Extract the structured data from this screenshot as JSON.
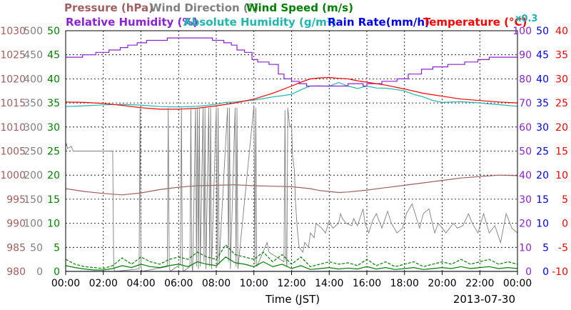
{
  "chart_data": {
    "type": "line",
    "date": "2013-07-30",
    "xlabel": "Time (JST)",
    "x_ticks": [
      "00:00",
      "02:00",
      "04:00",
      "06:00",
      "08:00",
      "10:00",
      "12:00",
      "14:00",
      "16:00",
      "18:00",
      "20:00",
      "22:00",
      "00:00"
    ],
    "xlim_hours": [
      0,
      24
    ],
    "grid": true,
    "legend": {
      "row1": [
        {
          "key": "pressure",
          "text": "Pressure (hPa)",
          "color": "#a0605f"
        },
        {
          "key": "winddir",
          "text": "Wind Direction (°)",
          "color": "#808080"
        },
        {
          "key": "windspeed",
          "text": "Wind Speed (m/s)",
          "color": "#008000"
        }
      ],
      "row2": [
        {
          "key": "rh",
          "text": "Relative Humidity (%)",
          "color": "#8c22d6"
        },
        {
          "key": "ah",
          "text": "Absolute Humidity (g/m³)",
          "color": "#1fb5b0"
        },
        {
          "key": "rain",
          "text": "Rain Rate(mm/h)",
          "color": "#0000ee"
        },
        {
          "key": "temp",
          "text": "Temperature (°C)",
          "color": "#ff0000"
        }
      ],
      "ah_scale_note": "x0.3"
    },
    "axes": {
      "pressure": {
        "side": "left",
        "ticks": [
          "1030",
          "1025",
          "1020",
          "1015",
          "1010",
          "1005",
          "1000",
          "995",
          "990",
          "985",
          "980"
        ],
        "range": [
          980,
          1030
        ],
        "color": "#a0605f"
      },
      "winddir": {
        "side": "left",
        "ticks": [
          "500",
          "450",
          "400",
          "350",
          "300",
          "250",
          "200",
          "150",
          "100",
          "50",
          "0"
        ],
        "range": [
          0,
          500
        ],
        "color": "#808080"
      },
      "windspeed": {
        "side": "left",
        "ticks": [
          "50",
          "45",
          "40",
          "35",
          "30",
          "25",
          "20",
          "15",
          "10",
          "5",
          "0"
        ],
        "range": [
          0,
          50
        ],
        "color": "#008000"
      },
      "rh": {
        "side": "right",
        "ticks": [
          "100",
          "90",
          "80",
          "70",
          "60",
          "50",
          "40",
          "30",
          "20",
          "10",
          "0"
        ],
        "range": [
          0,
          100
        ],
        "color": "#8c22d6"
      },
      "rain": {
        "side": "right",
        "ticks": [
          "50",
          "45",
          "40",
          "35",
          "30",
          "25",
          "20",
          "15",
          "10",
          "5",
          "0"
        ],
        "range": [
          0,
          50
        ],
        "color": "#0000ee"
      },
      "temp": {
        "side": "right",
        "ticks": [
          "40",
          "35",
          "30",
          "25",
          "20",
          "15",
          "10",
          "5",
          "0",
          "-5",
          "-10"
        ],
        "range": [
          -10,
          40
        ],
        "color": "#ff0000"
      }
    },
    "series": [
      {
        "name": "Relative Humidity (%)",
        "axis": "rh",
        "color": "#8c22d6",
        "style": "step",
        "x": [
          0,
          0.9,
          1.6,
          2.3,
          2.9,
          3.3,
          3.8,
          4.3,
          5.4,
          7.8,
          8.4,
          8.8,
          9.1,
          9.5,
          9.9,
          10.2,
          10.8,
          11.3,
          11.6,
          12.0,
          12.4,
          12.8,
          14.0,
          15.0,
          15.8,
          16.0,
          16.8,
          17.6,
          18.2,
          18.9,
          19.5,
          20.3,
          21.2,
          21.9,
          22.5,
          24.0
        ],
        "y": [
          89,
          90,
          91,
          92,
          93,
          94,
          95,
          96,
          97,
          96,
          95,
          94,
          92,
          91,
          88,
          87,
          86,
          82,
          80,
          79,
          78,
          77,
          77,
          78,
          77,
          78,
          79,
          80,
          82,
          84,
          85,
          86,
          87,
          88,
          89,
          89
        ]
      },
      {
        "name": "Absolute Humidity (g/m³) x0.3",
        "axis": "rh",
        "color": "#1fb5b0",
        "style": "line",
        "x": [
          0,
          1.0,
          2.0,
          3.0,
          4.0,
          5.0,
          6.0,
          7.0,
          7.5,
          8.0,
          8.5,
          9.0,
          9.5,
          10.0,
          10.5,
          11.0,
          11.5,
          12.0,
          12.5,
          13.0,
          13.5,
          14.0,
          14.5,
          15.0,
          15.5,
          16.0,
          16.5,
          17.0,
          17.5,
          18.0,
          18.5,
          19.0,
          19.5,
          20.0,
          21.0,
          22.0,
          23.0,
          24.0
        ],
        "y": [
          68.5,
          68.8,
          69.2,
          69.4,
          69.1,
          68.5,
          68.3,
          68.6,
          69.0,
          69.5,
          70.2,
          70.4,
          70.8,
          71.2,
          71.8,
          72.5,
          73.0,
          73.6,
          75.5,
          77.0,
          77.1,
          76.9,
          78.5,
          77.0,
          76.0,
          77.0,
          76.2,
          76.1,
          75.6,
          75.0,
          73.5,
          72.5,
          71.0,
          70.2,
          70.5,
          70.0,
          69.3,
          68.6
        ]
      },
      {
        "name": "Temperature (°C)",
        "axis": "temp",
        "color": "#ff0000",
        "style": "line",
        "x": [
          0,
          1,
          2,
          3,
          4,
          5,
          6,
          7,
          8,
          9,
          10,
          11,
          12,
          12.5,
          13,
          13.5,
          14,
          14.5,
          15,
          15.5,
          16,
          17,
          18,
          19,
          20,
          21,
          22,
          23,
          24
        ],
        "y": [
          25.2,
          25.1,
          24.9,
          24.5,
          24.0,
          23.7,
          23.7,
          23.9,
          24.4,
          25.0,
          25.8,
          27.0,
          28.5,
          29.3,
          30.0,
          30.2,
          30.3,
          30.1,
          30.0,
          29.6,
          29.3,
          28.7,
          27.9,
          27.0,
          26.4,
          25.8,
          25.5,
          25.2,
          25.0
        ]
      },
      {
        "name": "Pressure (hPa)",
        "axis": "pressure",
        "color": "#a0605f",
        "style": "line",
        "x": [
          0,
          1,
          2,
          3,
          4,
          5,
          6,
          7,
          8,
          9,
          10,
          11,
          12,
          13,
          13.5,
          14,
          14.5,
          15,
          16,
          17,
          18,
          19,
          20,
          21,
          22,
          23,
          24
        ],
        "y": [
          997.2,
          996.6,
          996.2,
          995.9,
          996.3,
          997.0,
          997.5,
          997.8,
          997.9,
          998.0,
          997.8,
          997.7,
          997.6,
          997.2,
          996.8,
          996.6,
          996.4,
          996.5,
          996.9,
          997.4,
          997.9,
          998.4,
          998.9,
          999.4,
          999.7,
          1000.0,
          999.9
        ]
      },
      {
        "name": "Wind Direction (°)",
        "axis": "winddir",
        "color": "#808080",
        "style": "line",
        "x": [
          0,
          0.05,
          0.1,
          0.3,
          0.4,
          2.5,
          2.55,
          2.6,
          3.9,
          3.95,
          4.0,
          4.05,
          5.4,
          5.45,
          5.5,
          5.55,
          6.1,
          6.15,
          6.2,
          6.25,
          6.6,
          6.65,
          6.7,
          6.75,
          6.9,
          6.95,
          7.0,
          7.05,
          7.1,
          7.15,
          7.3,
          7.35,
          7.4,
          7.45,
          7.6,
          7.65,
          7.7,
          7.75,
          8.0,
          8.05,
          8.1,
          8.15,
          8.6,
          8.65,
          8.7,
          8.75,
          9.0,
          9.05,
          9.1,
          9.15,
          10.0,
          10.05,
          10.1,
          10.15,
          10.7,
          10.8,
          11.6,
          11.65,
          11.7,
          11.75,
          11.8,
          11.9,
          12.0,
          12.05,
          12.15,
          12.2,
          12.3,
          12.4,
          12.5,
          12.6,
          12.7,
          12.9,
          13.0,
          13.2,
          13.3,
          13.6,
          13.8,
          14.0,
          14.1,
          14.2,
          14.5,
          14.6,
          14.7,
          14.9,
          15.2,
          15.3,
          15.5,
          15.8,
          15.9,
          16.1,
          16.3,
          16.5,
          16.8,
          17.1,
          17.3,
          17.6,
          17.9,
          18.1,
          18.4,
          18.8,
          19.0,
          19.3,
          19.6,
          19.8,
          20.0,
          20.2,
          20.4,
          20.6,
          20.8,
          21.1,
          21.4,
          21.6,
          21.9,
          22.2,
          22.5,
          22.8,
          23.1,
          23.4,
          23.7,
          24.0
        ],
        "y": [
          260,
          265,
          255,
          260,
          250,
          250,
          10,
          0,
          5,
          340,
          10,
          0,
          10,
          340,
          10,
          0,
          15,
          340,
          20,
          0,
          10,
          340,
          15,
          0,
          340,
          10,
          340,
          5,
          340,
          10,
          340,
          20,
          340,
          5,
          340,
          10,
          340,
          5,
          340,
          10,
          340,
          15,
          340,
          20,
          340,
          5,
          340,
          10,
          340,
          5,
          345,
          15,
          340,
          10,
          60,
          40,
          20,
          335,
          30,
          10,
          340,
          300,
          305,
          240,
          210,
          150,
          90,
          50,
          45,
          40,
          60,
          50,
          80,
          70,
          100,
          90,
          80,
          105,
          95,
          90,
          100,
          120,
          110,
          100,
          95,
          110,
          95,
          130,
          100,
          80,
          105,
          120,
          90,
          125,
          100,
          80,
          90,
          120,
          140,
          90,
          120,
          130,
          80,
          100,
          90,
          80,
          90,
          100,
          90,
          95,
          120,
          100,
          80,
          120,
          80,
          95,
          60,
          120,
          90,
          80
        ]
      },
      {
        "name": "Wind Speed (m/s) gust",
        "axis": "windspeed",
        "color": "#008000",
        "style": "dash",
        "x": [
          0,
          0.5,
          1,
          1.5,
          2,
          2.5,
          3,
          3.5,
          4,
          4.5,
          5,
          5.5,
          6,
          6.5,
          7,
          7.5,
          8,
          8.5,
          9,
          9.5,
          10,
          10.5,
          11,
          11.5,
          12,
          12.5,
          13,
          13.5,
          14,
          14.5,
          15,
          15.5,
          16,
          16.5,
          17,
          17.5,
          18,
          18.5,
          19,
          19.5,
          20,
          20.5,
          21,
          21.5,
          22,
          22.5,
          23,
          23.5,
          24
        ],
        "y": [
          2.5,
          1.5,
          1.0,
          0.8,
          0.6,
          1.2,
          2.8,
          1.5,
          3.0,
          2.0,
          1.5,
          2.5,
          3.0,
          2.5,
          4.0,
          3.0,
          2.5,
          5.5,
          3.5,
          3.0,
          2.5,
          4.0,
          2.0,
          3.5,
          1.5,
          3.0,
          1.0,
          1.5,
          2.0,
          1.5,
          1.8,
          1.2,
          2.5,
          1.2,
          2.0,
          1.0,
          1.5,
          2.0,
          1.0,
          1.5,
          2.0,
          1.5,
          2.5,
          1.5,
          2.0,
          2.5,
          1.5,
          2.0,
          1.5
        ]
      },
      {
        "name": "Wind Speed (m/s)",
        "axis": "windspeed",
        "color": "#008000",
        "style": "line",
        "x": [
          0,
          0.5,
          1,
          1.5,
          2,
          2.5,
          3,
          3.5,
          4,
          4.5,
          5,
          5.5,
          6,
          6.5,
          7,
          7.5,
          8,
          8.5,
          9,
          9.5,
          10,
          10.5,
          11,
          11.5,
          12,
          12.5,
          13,
          13.5,
          14,
          14.5,
          15,
          15.5,
          16,
          16.5,
          17,
          17.5,
          18,
          18.5,
          19,
          19.5,
          20,
          20.5,
          21,
          21.5,
          22,
          22.5,
          23,
          23.5,
          24
        ],
        "y": [
          1.2,
          0.8,
          0.5,
          0.3,
          0.3,
          0.6,
          1.2,
          0.8,
          1.5,
          1.0,
          0.8,
          1.2,
          1.5,
          1.0,
          2.0,
          1.5,
          1.2,
          3.0,
          1.8,
          1.5,
          1.0,
          2.0,
          1.0,
          1.5,
          0.6,
          1.2,
          0.4,
          0.6,
          0.8,
          0.5,
          0.7,
          0.5,
          1.0,
          0.5,
          0.8,
          0.4,
          0.6,
          0.8,
          0.4,
          0.6,
          0.8,
          0.6,
          1.0,
          0.6,
          0.8,
          1.0,
          0.6,
          0.8,
          0.6
        ]
      },
      {
        "name": "Rain Rate(mm/h)",
        "axis": "rain",
        "color": "#0000ee",
        "style": "line",
        "x": [
          0,
          24
        ],
        "y": [
          0,
          0
        ]
      }
    ]
  }
}
